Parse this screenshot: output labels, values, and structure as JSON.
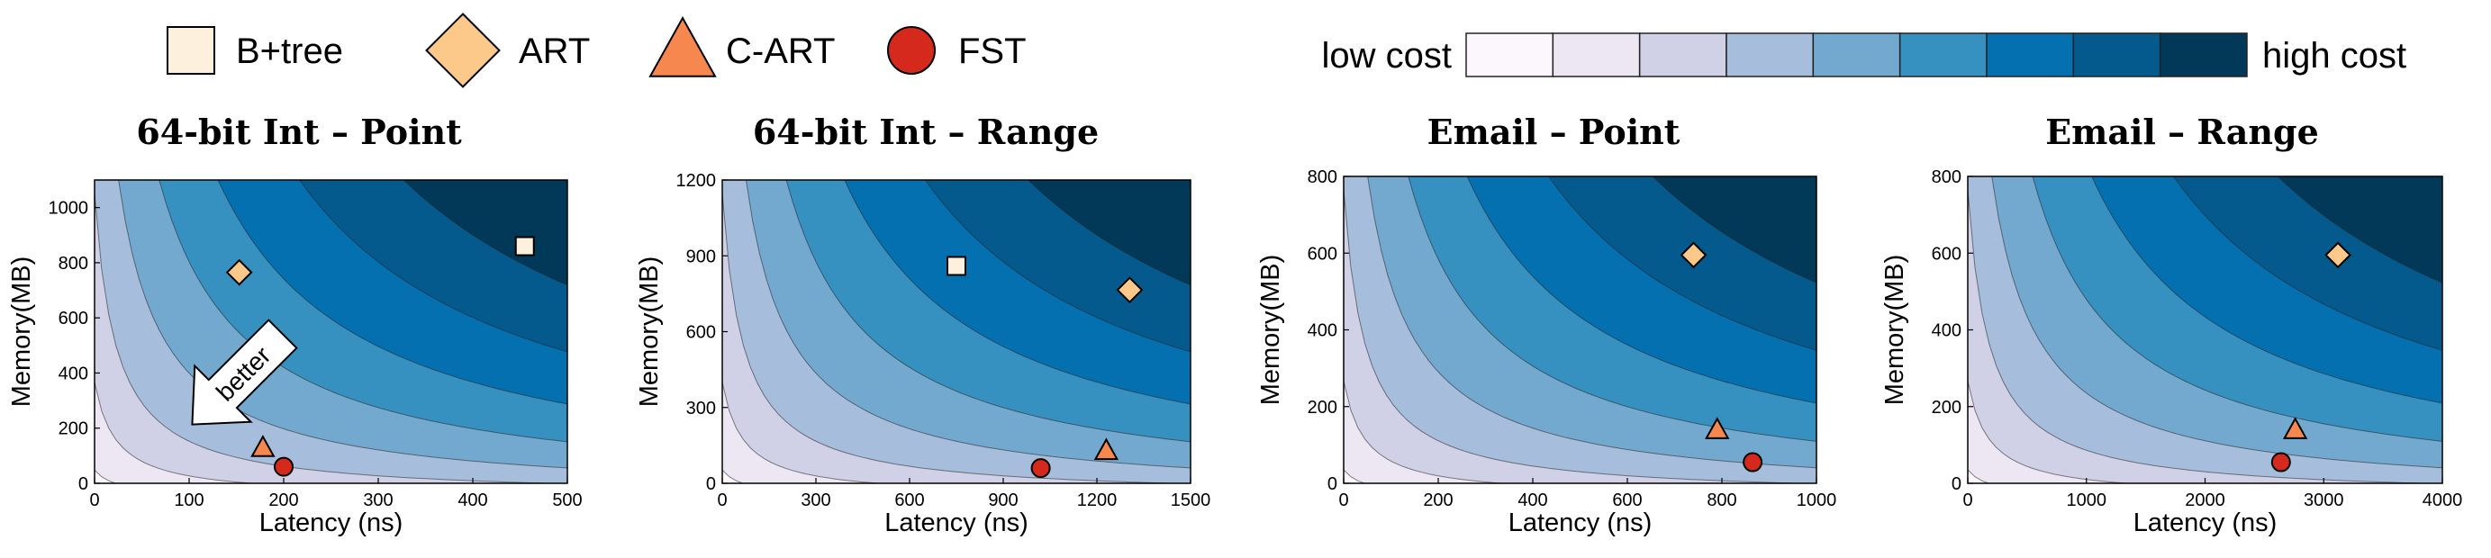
{
  "legend": {
    "markers": [
      {
        "label": "B+tree",
        "shape": "square",
        "color": "#fdf0dc"
      },
      {
        "label": "ART",
        "shape": "diamond",
        "color": "#fdc98a"
      },
      {
        "label": "C-ART",
        "shape": "triangle",
        "color": "#f5874f"
      },
      {
        "label": "FST",
        "shape": "circle",
        "color": "#d4291c"
      }
    ],
    "colorbar": {
      "low_label": "low cost",
      "high_label": "high cost",
      "colors": [
        "#fcf7fc",
        "#ece7f2",
        "#d0d1e6",
        "#a6bddb",
        "#74a9cf",
        "#3690c0",
        "#0570b0",
        "#045a8d",
        "#023858"
      ]
    }
  },
  "chart_data": [
    {
      "type": "scatter",
      "title": "64-bit Int – Point",
      "xlabel": "Latency (ns)",
      "ylabel": "Memory(MB)",
      "xlim": [
        0,
        500
      ],
      "ylim": [
        0,
        1100
      ],
      "xticks": [
        0,
        100,
        200,
        300,
        400,
        500
      ],
      "yticks": [
        0,
        200,
        400,
        600,
        800,
        1000
      ],
      "background": "cost contour (latency × memory), low cost at lower-left, high cost at upper-right",
      "points": [
        {
          "series": "B+tree",
          "x": 455,
          "y": 860
        },
        {
          "series": "ART",
          "x": 153,
          "y": 765
        },
        {
          "series": "C-ART",
          "x": 178,
          "y": 130
        },
        {
          "series": "FST",
          "x": 200,
          "y": 60
        }
      ],
      "annotation": {
        "text": "better",
        "direction": "lower-left"
      }
    },
    {
      "type": "scatter",
      "title": "64-bit Int – Range",
      "xlabel": "Latency (ns)",
      "ylabel": "Memory(MB)",
      "xlim": [
        0,
        1500
      ],
      "ylim": [
        0,
        1200
      ],
      "xticks": [
        0,
        300,
        600,
        900,
        1200,
        1500
      ],
      "yticks": [
        0,
        300,
        600,
        900,
        1200
      ],
      "background": "cost contour (latency × memory), low cost at lower-left, high cost at upper-right",
      "points": [
        {
          "series": "B+tree",
          "x": 750,
          "y": 860
        },
        {
          "series": "ART",
          "x": 1305,
          "y": 765
        },
        {
          "series": "C-ART",
          "x": 1230,
          "y": 130
        },
        {
          "series": "FST",
          "x": 1020,
          "y": 60
        }
      ]
    },
    {
      "type": "scatter",
      "title": "Email – Point",
      "xlabel": "Latency (ns)",
      "ylabel": "Memory(MB)",
      "xlim": [
        0,
        1000
      ],
      "ylim": [
        0,
        800
      ],
      "xticks": [
        0,
        200,
        400,
        600,
        800,
        1000
      ],
      "yticks": [
        0,
        200,
        400,
        600,
        800
      ],
      "background": "cost contour (latency × memory), low cost at lower-left, high cost at upper-right",
      "points": [
        {
          "series": "ART",
          "x": 740,
          "y": 595
        },
        {
          "series": "C-ART",
          "x": 790,
          "y": 140
        },
        {
          "series": "FST",
          "x": 865,
          "y": 55
        }
      ]
    },
    {
      "type": "scatter",
      "title": "Email – Range",
      "xlabel": "Latency (ns)",
      "ylabel": "Memory(MB)",
      "xlim": [
        0,
        4000
      ],
      "ylim": [
        0,
        800
      ],
      "xticks": [
        0,
        1000,
        2000,
        3000,
        4000
      ],
      "yticks": [
        0,
        200,
        400,
        600,
        800
      ],
      "background": "cost contour (latency × memory), low cost at lower-left, high cost at upper-right",
      "points": [
        {
          "series": "ART",
          "x": 3120,
          "y": 595
        },
        {
          "series": "C-ART",
          "x": 2760,
          "y": 140
        },
        {
          "series": "FST",
          "x": 2640,
          "y": 55
        }
      ]
    }
  ]
}
